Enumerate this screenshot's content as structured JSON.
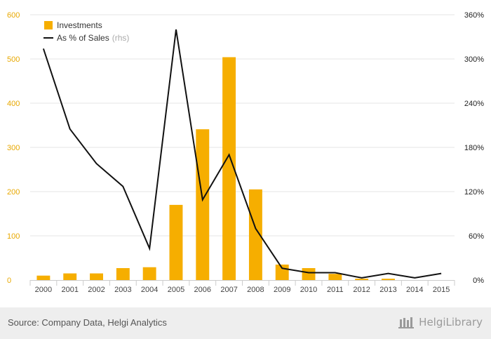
{
  "chart_data": {
    "type": "bar",
    "categories": [
      "2000",
      "2001",
      "2002",
      "2003",
      "2004",
      "2005",
      "2006",
      "2007",
      "2008",
      "2009",
      "2010",
      "2011",
      "2012",
      "2013",
      "2014",
      "2015"
    ],
    "series": [
      {
        "name": "Investments",
        "type": "bar",
        "axis": "left",
        "color": "#f6ae00",
        "values": [
          10,
          15,
          15,
          27,
          29,
          170,
          341,
          504,
          205,
          35,
          27,
          14,
          3,
          3,
          0,
          0
        ]
      },
      {
        "name": "As % of Sales",
        "type": "line",
        "axis": "right",
        "color": "#111111",
        "values": [
          314,
          205,
          158,
          127,
          43,
          340,
          109,
          170,
          70,
          16,
          10,
          10,
          3,
          9,
          3,
          9
        ]
      }
    ],
    "left_axis": {
      "min": 0,
      "max": 600,
      "ticks": [
        0,
        100,
        200,
        300,
        400,
        500,
        600
      ],
      "color": "#e8a800"
    },
    "right_axis": {
      "min": 0,
      "max": 360,
      "ticks": [
        "0%",
        "60%",
        "120%",
        "180%",
        "240%",
        "300%",
        "360%"
      ],
      "tick_values": [
        0,
        60,
        120,
        180,
        240,
        300,
        360
      ]
    },
    "legend": {
      "position": "top-left",
      "items": [
        {
          "label": "Investments",
          "note": ""
        },
        {
          "label": "As % of Sales",
          "note": "(rhs)"
        }
      ]
    },
    "grid": true
  },
  "footer": {
    "source": "Source: Company Data, Helgi Analytics",
    "brand": "HelgiLibrary"
  },
  "colors": {
    "grid": "#e6e6e6",
    "axis": "#cccccc"
  }
}
